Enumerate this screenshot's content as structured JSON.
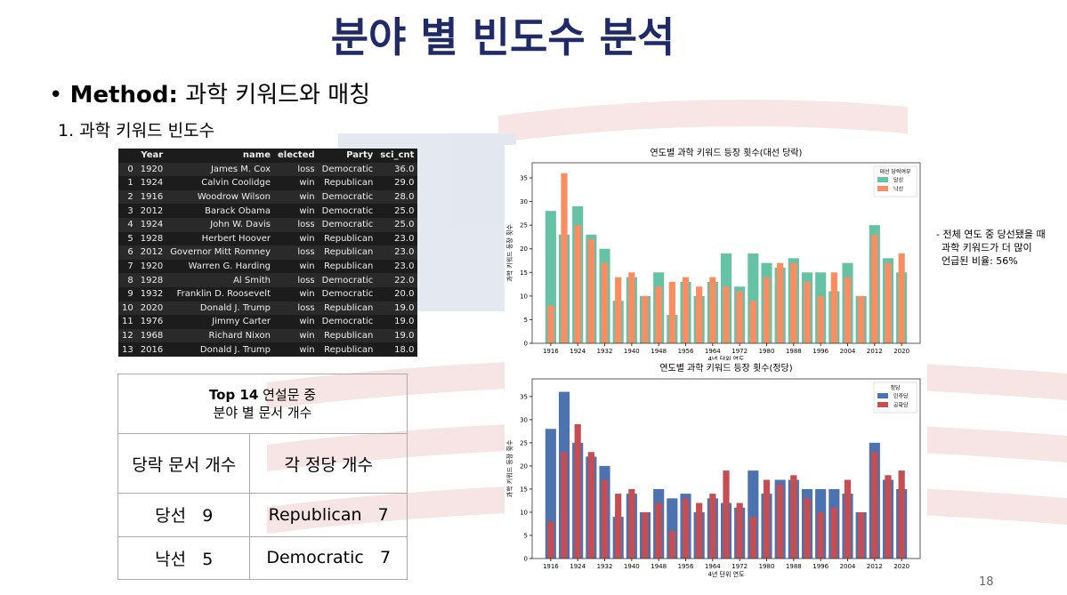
{
  "slide": {
    "title": "분야 별 빈도수 분석",
    "bullet_label": "Method:",
    "bullet_text": "과학 키워드와 매칭",
    "subheading": "1. 과학 키워드 빈도수",
    "page_number": "18"
  },
  "dataframe": {
    "columns": [
      "Year",
      "name",
      "elected",
      "Party",
      "sci_cnt"
    ],
    "rows": [
      [
        "0",
        "1920",
        "James M. Cox",
        "loss",
        "Democratic",
        "36.0"
      ],
      [
        "1",
        "1924",
        "Calvin Coolidge",
        "win",
        "Republican",
        "29.0"
      ],
      [
        "2",
        "1916",
        "Woodrow Wilson",
        "win",
        "Democratic",
        "28.0"
      ],
      [
        "3",
        "2012",
        "Barack Obama",
        "win",
        "Democratic",
        "25.0"
      ],
      [
        "4",
        "1924",
        "John W. Davis",
        "loss",
        "Democratic",
        "25.0"
      ],
      [
        "5",
        "1928",
        "Herbert Hoover",
        "win",
        "Republican",
        "23.0"
      ],
      [
        "6",
        "2012",
        "Governor Mitt Romney",
        "loss",
        "Republican",
        "23.0"
      ],
      [
        "7",
        "1920",
        "Warren G. Harding",
        "win",
        "Republican",
        "23.0"
      ],
      [
        "8",
        "1928",
        "Al Smith",
        "loss",
        "Democratic",
        "22.0"
      ],
      [
        "9",
        "1932",
        "Franklin D. Roosevelt",
        "win",
        "Democratic",
        "20.0"
      ],
      [
        "10",
        "2020",
        "Donald J. Trump",
        "loss",
        "Republican",
        "19.0"
      ],
      [
        "11",
        "1976",
        "Jimmy Carter",
        "win",
        "Democratic",
        "19.0"
      ],
      [
        "12",
        "1968",
        "Richard Nixon",
        "win",
        "Republican",
        "19.0"
      ],
      [
        "13",
        "2016",
        "Donald J. Trump",
        "win",
        "Republican",
        "18.0"
      ]
    ]
  },
  "summary_table": {
    "header": [
      "Top 14",
      "연설문 중",
      "분야 별 문서 개수"
    ],
    "col_headers": [
      "당락 문서 개수",
      "각 정당 개수"
    ],
    "rows": [
      [
        "당선",
        "9",
        "Republican",
        "7"
      ],
      [
        "낙선",
        "5",
        "Democratic",
        "7"
      ]
    ]
  },
  "note": [
    "- 전체 연도 중 당선됐을 때",
    "과학 키워드가 더 많이",
    "언급된 비율: 56%"
  ],
  "chart_data": [
    {
      "type": "bar",
      "title": "연도별 과학 키워드 등장 횟수(대선 당락)",
      "xlabel": "4년 단위 연도",
      "ylabel": "과학 키워드 등장 횟수",
      "x": [
        1916,
        1920,
        1924,
        1928,
        1932,
        1936,
        1940,
        1944,
        1948,
        1952,
        1956,
        1960,
        1964,
        1968,
        1972,
        1976,
        1980,
        1984,
        1988,
        1992,
        1996,
        2000,
        2004,
        2008,
        2012,
        2016,
        2020
      ],
      "xlim": [
        1910.5,
        2025.5
      ],
      "xticks": [
        1916,
        1924,
        1932,
        1940,
        1948,
        1956,
        1964,
        1972,
        1980,
        1988,
        1996,
        2004,
        2012,
        2020
      ],
      "ylim": [
        0,
        38.2
      ],
      "yticks": [
        0,
        5,
        10,
        15,
        20,
        25,
        30,
        35
      ],
      "legend": "upper right",
      "legend_title": "대선 당락여부",
      "series": [
        {
          "name": "당선",
          "color": "#66c2a5",
          "values": [
            28,
            23,
            29,
            23,
            20,
            9,
            14,
            10,
            15,
            6,
            13,
            10,
            13,
            19,
            12,
            19,
            17,
            16,
            18,
            15,
            15,
            11,
            17,
            10,
            25,
            18,
            15
          ]
        },
        {
          "name": "낙선",
          "color": "#fc8d62",
          "values": [
            8,
            36,
            25,
            22,
            17,
            14,
            15,
            10,
            12,
            13,
            14,
            12,
            14,
            12,
            11,
            9,
            14,
            17,
            17,
            13,
            10,
            15,
            14,
            10,
            23,
            17,
            19
          ]
        }
      ]
    },
    {
      "type": "bar",
      "title": "연도별 과학 키워드 등장 횟수(정당)",
      "xlabel": "4년 단위 연도",
      "ylabel": "과학 키워드 등장 횟수",
      "x": [
        1916,
        1920,
        1924,
        1928,
        1932,
        1936,
        1940,
        1944,
        1948,
        1952,
        1956,
        1960,
        1964,
        1968,
        1972,
        1976,
        1980,
        1984,
        1988,
        1992,
        1996,
        2000,
        2004,
        2008,
        2012,
        2016,
        2020
      ],
      "xlim": [
        1910.5,
        2025.5
      ],
      "xticks": [
        1916,
        1924,
        1932,
        1940,
        1948,
        1956,
        1964,
        1972,
        1980,
        1988,
        1996,
        2004,
        2012,
        2020
      ],
      "ylim": [
        0,
        38.8
      ],
      "yticks": [
        0,
        5,
        10,
        15,
        20,
        25,
        30,
        35
      ],
      "legend": "upper right",
      "legend_title": "정당",
      "series": [
        {
          "name": "민주당",
          "color": "#4c72b0",
          "values": [
            28,
            36,
            25,
            22,
            20,
            9,
            14,
            10,
            15,
            13,
            14,
            10,
            13,
            12,
            11,
            19,
            14,
            17,
            17,
            15,
            15,
            15,
            14,
            10,
            25,
            17,
            15
          ]
        },
        {
          "name": "공화당",
          "color": "#c44e52",
          "values": [
            8,
            23,
            29,
            23,
            17,
            14,
            15,
            10,
            12,
            6,
            13,
            12,
            14,
            19,
            12,
            9,
            17,
            16,
            18,
            13,
            10,
            11,
            17,
            10,
            23,
            18,
            19
          ]
        }
      ]
    }
  ]
}
